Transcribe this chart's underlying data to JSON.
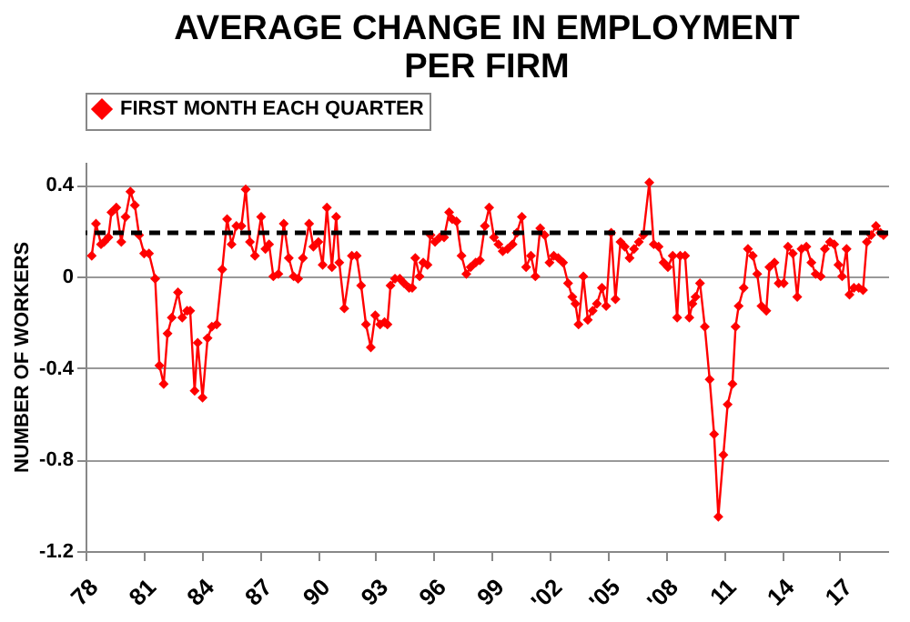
{
  "chart_data": {
    "type": "line",
    "title": "AVERAGE CHANGE IN EMPLOYMENT PER FIRM",
    "ylabel": "NUMBER OF WORKERS",
    "legend": "top",
    "grid": "y",
    "marker": "diamond",
    "line_style": "solid",
    "xlim": [
      1978,
      2019.5
    ],
    "xticks": [
      {
        "value": 1978,
        "label": "78"
      },
      {
        "value": 1981,
        "label": "81"
      },
      {
        "value": 1984,
        "label": "84"
      },
      {
        "value": 1987,
        "label": "87"
      },
      {
        "value": 1990,
        "label": "90"
      },
      {
        "value": 1993,
        "label": "93"
      },
      {
        "value": 1996,
        "label": "96"
      },
      {
        "value": 1999,
        "label": "99"
      },
      {
        "value": 2002,
        "label": "'02"
      },
      {
        "value": 2005,
        "label": "'05"
      },
      {
        "value": 2008,
        "label": "'08"
      },
      {
        "value": 2011,
        "label": "11"
      },
      {
        "value": 2014,
        "label": "14"
      },
      {
        "value": 2017,
        "label": "17"
      }
    ],
    "ylim": [
      -1.2,
      0.5
    ],
    "yticks": [
      -1.2,
      -0.8,
      -0.4,
      0,
      0.4
    ],
    "ref_lines": [
      {
        "axis": "y",
        "value": 0.19,
        "color": "#000000",
        "line_style": "dashed"
      }
    ],
    "series": [
      {
        "name": "FIRST MONTH EACH QUARTER",
        "color": "#ff0000",
        "x": [
          1978.32,
          1978.54,
          1978.8,
          1978.96,
          1979.18,
          1979.34,
          1979.59,
          1979.85,
          1980.07,
          1980.32,
          1980.55,
          1980.77,
          1981.03,
          1981.28,
          1981.6,
          1981.82,
          1982.04,
          1982.24,
          1982.46,
          1982.78,
          1983.0,
          1983.25,
          1983.41,
          1983.64,
          1983.8,
          1984.05,
          1984.31,
          1984.53,
          1984.78,
          1985.07,
          1985.32,
          1985.55,
          1985.8,
          1986.06,
          1986.28,
          1986.5,
          1986.76,
          1987.08,
          1987.3,
          1987.49,
          1987.71,
          1987.97,
          1988.25,
          1988.51,
          1988.76,
          1988.99,
          1989.24,
          1989.56,
          1989.78,
          1990.04,
          1990.26,
          1990.48,
          1990.74,
          1990.96,
          1991.12,
          1991.38,
          1991.77,
          1992.02,
          1992.25,
          1992.5,
          1992.75,
          1992.98,
          1993.23,
          1993.46,
          1993.61,
          1993.77,
          1994.0,
          1994.25,
          1994.47,
          1994.73,
          1994.89,
          1995.05,
          1995.27,
          1995.46,
          1995.68,
          1995.84,
          1996.07,
          1996.32,
          1996.54,
          1996.8,
          1996.96,
          1997.18,
          1997.44,
          1997.69,
          1997.91,
          1998.17,
          1998.39,
          1998.65,
          1998.87,
          1999.12,
          1999.35,
          1999.57,
          1999.82,
          2000.08,
          2000.3,
          2000.56,
          2000.78,
          2001.03,
          2001.26,
          2001.51,
          2001.74,
          2001.99,
          2002.21,
          2002.44,
          2002.69,
          2002.95,
          2003.17,
          2003.33,
          2003.49,
          2003.74,
          2003.97,
          2004.22,
          2004.44,
          2004.7,
          2004.92,
          2005.18,
          2005.4,
          2005.66,
          2005.88,
          2006.13,
          2006.36,
          2006.61,
          2006.84,
          2007.15,
          2007.38,
          2007.63,
          2007.89,
          2008.11,
          2008.36,
          2008.59,
          2008.75,
          2009.0,
          2009.22,
          2009.38,
          2009.54,
          2009.77,
          2010.02,
          2010.27,
          2010.5,
          2010.72,
          2010.98,
          2011.2,
          2011.45,
          2011.61,
          2011.77,
          2012.03,
          2012.25,
          2012.5,
          2012.73,
          2012.95,
          2013.2,
          2013.36,
          2013.62,
          2013.84,
          2014.1,
          2014.32,
          2014.57,
          2014.8,
          2015.02,
          2015.27,
          2015.53,
          2015.75,
          2016.01,
          2016.23,
          2016.49,
          2016.71,
          2016.93,
          2017.12,
          2017.35,
          2017.5,
          2017.73,
          2017.98,
          2018.2,
          2018.4,
          2018.62,
          2018.87,
          2019.1,
          2019.26
        ],
        "values": [
          0.09,
          0.23,
          0.14,
          0.15,
          0.17,
          0.28,
          0.3,
          0.15,
          0.26,
          0.37,
          0.31,
          0.18,
          0.1,
          0.1,
          -0.01,
          -0.39,
          -0.47,
          -0.25,
          -0.18,
          -0.07,
          -0.18,
          -0.15,
          -0.15,
          -0.5,
          -0.29,
          -0.53,
          -0.27,
          -0.22,
          -0.21,
          0.03,
          0.25,
          0.14,
          0.22,
          0.22,
          0.38,
          0.15,
          0.09,
          0.26,
          0.12,
          0.14,
          0.0,
          0.01,
          0.23,
          0.08,
          0.0,
          -0.01,
          0.08,
          0.23,
          0.13,
          0.15,
          0.05,
          0.3,
          0.04,
          0.26,
          0.06,
          -0.14,
          0.09,
          0.09,
          -0.04,
          -0.21,
          -0.31,
          -0.17,
          -0.21,
          -0.2,
          -0.21,
          -0.04,
          -0.01,
          -0.01,
          -0.03,
          -0.05,
          -0.05,
          0.08,
          0.0,
          0.06,
          0.05,
          0.18,
          0.15,
          0.17,
          0.17,
          0.28,
          0.25,
          0.24,
          0.09,
          0.01,
          0.04,
          0.06,
          0.07,
          0.22,
          0.3,
          0.17,
          0.14,
          0.11,
          0.12,
          0.14,
          0.19,
          0.26,
          0.04,
          0.09,
          0.0,
          0.21,
          0.18,
          0.06,
          0.09,
          0.08,
          0.06,
          -0.03,
          -0.09,
          -0.12,
          -0.21,
          0.0,
          -0.19,
          -0.15,
          -0.12,
          -0.05,
          -0.13,
          0.19,
          -0.1,
          0.15,
          0.13,
          0.08,
          0.12,
          0.15,
          0.18,
          0.41,
          0.14,
          0.13,
          0.06,
          0.04,
          0.09,
          -0.18,
          0.09,
          0.09,
          -0.18,
          -0.12,
          -0.09,
          -0.03,
          -0.22,
          -0.45,
          -0.69,
          -1.05,
          -0.78,
          -0.56,
          -0.47,
          -0.22,
          -0.13,
          -0.05,
          0.12,
          0.09,
          0.01,
          -0.13,
          -0.15,
          0.04,
          0.06,
          -0.03,
          -0.03,
          0.13,
          0.1,
          -0.09,
          0.12,
          0.13,
          0.06,
          0.01,
          0.0,
          0.12,
          0.15,
          0.14,
          0.05,
          0.0,
          0.12,
          -0.08,
          -0.05,
          -0.05,
          -0.06,
          0.15,
          0.18,
          0.22,
          0.19,
          0.18
        ]
      }
    ]
  }
}
